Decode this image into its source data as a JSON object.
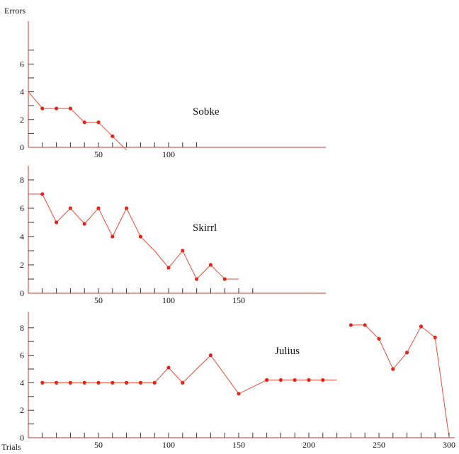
{
  "chart_data": [
    {
      "type": "line",
      "title": "Sobke",
      "ylabel": "Errors",
      "xlabel": "",
      "xlim": [
        0,
        210
      ],
      "ylim": [
        0,
        8
      ],
      "x_tick_labels": [
        50,
        100
      ],
      "y_tick_labels": [
        0,
        2,
        4,
        6
      ],
      "minor_x_ticks": [
        10,
        20,
        30,
        40,
        50,
        60,
        70,
        80,
        90,
        100,
        110,
        120
      ],
      "series": [
        {
          "x": [
            0,
            10,
            20,
            30,
            40,
            50,
            60,
            70
          ],
          "y": [
            4,
            2.8,
            2.8,
            2.8,
            1.8,
            1.8,
            0.8,
            -0.2
          ],
          "markers": [
            10,
            20,
            30,
            40,
            50,
            60
          ]
        }
      ],
      "colors": {
        "line": "#e74c3c",
        "marker": "#e0251b",
        "axis": "#c0392b"
      }
    },
    {
      "type": "line",
      "title": "Skirrl",
      "ylabel": "",
      "xlabel": "",
      "xlim": [
        0,
        210
      ],
      "ylim": [
        0,
        9
      ],
      "x_tick_labels": [
        50,
        100,
        150
      ],
      "y_tick_labels": [
        0,
        2,
        4,
        6,
        8
      ],
      "minor_x_ticks": [
        10,
        20,
        30,
        40,
        50,
        60,
        70,
        80,
        90,
        100,
        110,
        120,
        130,
        140,
        150,
        160
      ],
      "series": [
        {
          "x": [
            0,
            10,
            20,
            30,
            40,
            50,
            60,
            70,
            80,
            90,
            100,
            110,
            120,
            130,
            140,
            150
          ],
          "y": [
            7,
            7,
            5,
            6,
            4.9,
            6,
            4,
            6,
            4,
            3,
            1.8,
            3,
            1,
            2,
            1,
            1
          ],
          "markers": [
            10,
            20,
            30,
            40,
            50,
            60,
            70,
            80,
            100,
            110,
            120,
            130,
            140
          ]
        }
      ],
      "colors": {
        "line": "#e74c3c",
        "marker": "#e0251b",
        "axis": "#c0392b"
      }
    },
    {
      "type": "line",
      "title": "Julius",
      "ylabel": "",
      "xlabel": "Trials",
      "xlim": [
        0,
        300
      ],
      "ylim": [
        0,
        9
      ],
      "x_tick_labels": [
        50,
        100,
        150,
        200,
        250,
        300
      ],
      "y_tick_labels": [
        0,
        2,
        4,
        6,
        8
      ],
      "minor_x_ticks": [
        10,
        20,
        30,
        40,
        50,
        60,
        70,
        80,
        90,
        100,
        110,
        120,
        130,
        140,
        150,
        160,
        170,
        180,
        190,
        200,
        210,
        220,
        230,
        240,
        250,
        260,
        270,
        280,
        290,
        300
      ],
      "series": [
        {
          "x": [
            10,
            20,
            30,
            40,
            50,
            60,
            70,
            80,
            90,
            100,
            110,
            130,
            150,
            170,
            180,
            190,
            200,
            210,
            220
          ],
          "y": [
            4,
            4,
            4,
            4,
            4,
            4,
            4,
            4,
            4,
            5.1,
            4,
            6,
            3.2,
            4.2,
            4.2,
            4.2,
            4.2,
            4.2,
            4.2
          ],
          "markers": [
            10,
            20,
            30,
            40,
            50,
            60,
            70,
            80,
            90,
            100,
            110,
            130,
            150,
            170,
            180,
            190,
            200,
            210
          ]
        },
        {
          "x": [
            230,
            240,
            250,
            260,
            270,
            280,
            290,
            300
          ],
          "y": [
            8.2,
            8.2,
            7.2,
            5,
            6.2,
            8.1,
            7.3,
            0
          ],
          "markers": [
            230,
            240,
            250,
            260,
            270,
            280,
            290
          ]
        }
      ],
      "colors": {
        "line": "#e74c3c",
        "marker": "#e0251b",
        "axis": "#c0392b"
      }
    }
  ]
}
